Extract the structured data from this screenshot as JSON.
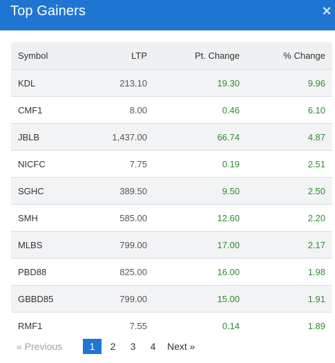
{
  "header": {
    "title": "Top Gainers",
    "close_symbol": "×"
  },
  "table": {
    "columns": [
      "Symbol",
      "LTP",
      "Pt. Change",
      "% Change"
    ],
    "rows": [
      {
        "symbol": "KDL",
        "ltp": "213.10",
        "pt": "19.30",
        "pct": "9.96"
      },
      {
        "symbol": "CMF1",
        "ltp": "8.00",
        "pt": "0.46",
        "pct": "6.10"
      },
      {
        "symbol": "JBLB",
        "ltp": "1,437.00",
        "pt": "66.74",
        "pct": "4.87"
      },
      {
        "symbol": "NICFC",
        "ltp": "7.75",
        "pt": "0.19",
        "pct": "2.51"
      },
      {
        "symbol": "SGHC",
        "ltp": "389.50",
        "pt": "9.50",
        "pct": "2.50"
      },
      {
        "symbol": "SMH",
        "ltp": "585.00",
        "pt": "12.60",
        "pct": "2.20"
      },
      {
        "symbol": "MLBS",
        "ltp": "799.00",
        "pt": "17.00",
        "pct": "2.17"
      },
      {
        "symbol": "PBD88",
        "ltp": "825.00",
        "pt": "16.00",
        "pct": "1.98"
      },
      {
        "symbol": "GBBD85",
        "ltp": "799.00",
        "pt": "15.00",
        "pct": "1.91"
      },
      {
        "symbol": "RMF1",
        "ltp": "7.55",
        "pt": "0.14",
        "pct": "1.89"
      }
    ]
  },
  "pagination": {
    "prev_label": "«  Previous",
    "pages": [
      "1",
      "2",
      "3",
      "4"
    ],
    "current_page": "1",
    "next_label": "Next  »"
  },
  "colors": {
    "header_bg": "#1f76d2",
    "positive": "#2e8b2e",
    "active_page": "#1f76d2"
  }
}
